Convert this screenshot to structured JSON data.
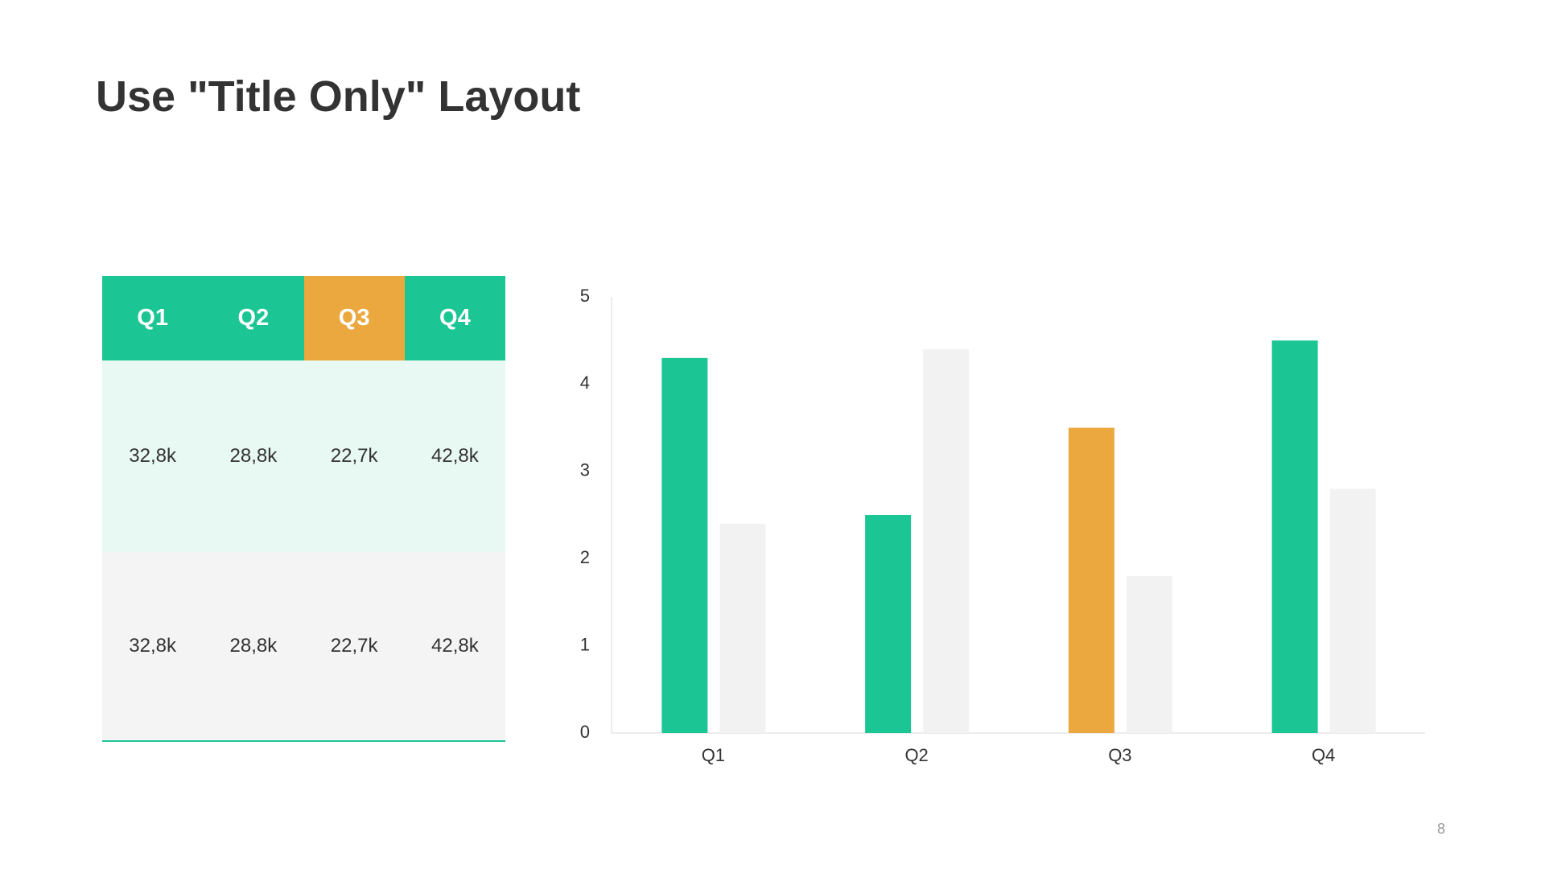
{
  "header": {
    "title": "Use \"Title Only\" Layout"
  },
  "table": {
    "header": [
      "Q1",
      "Q2",
      "Q3",
      "Q4"
    ],
    "header_colors": [
      "#1bc594",
      "#1bc594",
      "#eba83e",
      "#1bc594"
    ],
    "rows": [
      [
        "32,8k",
        "28,8k",
        "22,7k",
        "42,8k"
      ],
      [
        "32,8k",
        "28,8k",
        "22,7k",
        "42,8k"
      ]
    ],
    "row_colors": [
      "#e8f8f2",
      "#f4f4f4"
    ]
  },
  "chart_data": {
    "type": "bar",
    "categories": [
      "Q1",
      "Q2",
      "Q3",
      "Q4"
    ],
    "series": [
      {
        "colors": [
          "#1bc594",
          "#1bc594",
          "#eba83e",
          "#1bc594"
        ],
        "values": [
          4.3,
          2.5,
          3.5,
          4.5
        ]
      },
      {
        "color": "#f2f2f2",
        "values": [
          2.4,
          4.4,
          1.8,
          2.8
        ]
      }
    ],
    "ylim": [
      0,
      5
    ],
    "yticks": [
      0,
      1,
      2,
      3,
      4,
      5
    ],
    "grid": false
  },
  "footer": {
    "page_number": "8"
  }
}
